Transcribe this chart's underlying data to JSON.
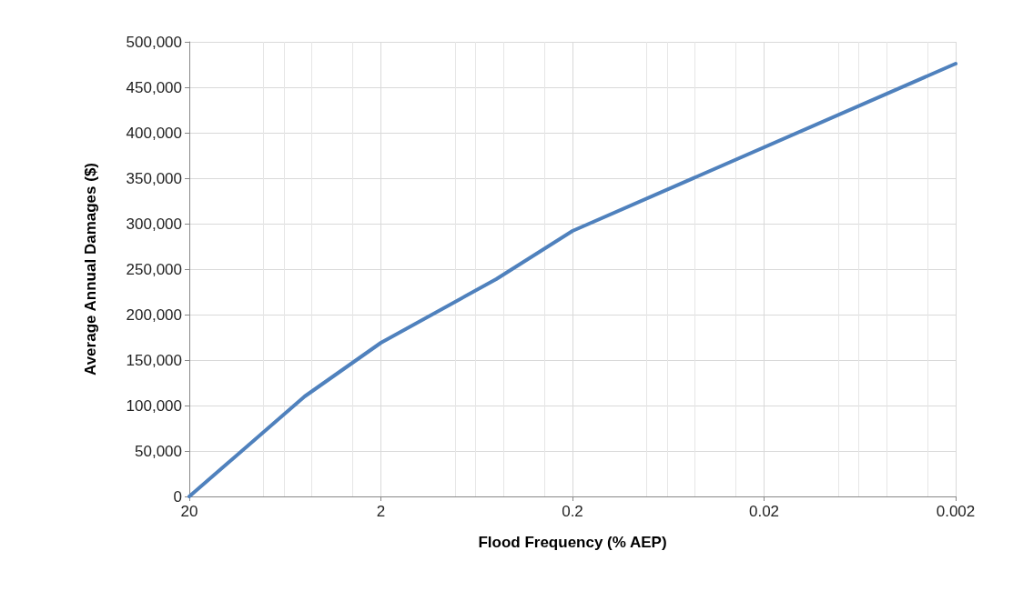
{
  "chart_data": {
    "type": "line",
    "xlabel": "Flood Frequency (% AEP)",
    "ylabel": "Average Annual Damages ($)",
    "x": [
      20,
      5,
      2,
      0.5,
      0.2,
      0.002
    ],
    "series": [
      {
        "color": "#4f81bd",
        "values": [
          0,
          110000,
          169000,
          239000,
          292000,
          476000
        ]
      }
    ],
    "log": "x",
    "xlim": [
      20,
      0.002
    ],
    "xticks": [
      20,
      2,
      0.2,
      0.02,
      0.002
    ],
    "ylim": [
      0,
      500000
    ],
    "yticks": [
      {
        "value": 0,
        "label": "0"
      },
      {
        "value": 50000,
        "label": "50,000"
      },
      {
        "value": 100000,
        "label": "100,000"
      },
      {
        "value": 150000,
        "label": "150,000"
      },
      {
        "value": 200000,
        "label": "200,000"
      },
      {
        "value": 250000,
        "label": "250,000"
      },
      {
        "value": 300000,
        "label": "300,000"
      },
      {
        "value": 350000,
        "label": "350,000"
      },
      {
        "value": 400000,
        "label": "400,000"
      },
      {
        "value": 450000,
        "label": "450,000"
      },
      {
        "value": 500000,
        "label": "500,000"
      }
    ],
    "grid": true,
    "marker": "none",
    "line_style": "solid"
  }
}
